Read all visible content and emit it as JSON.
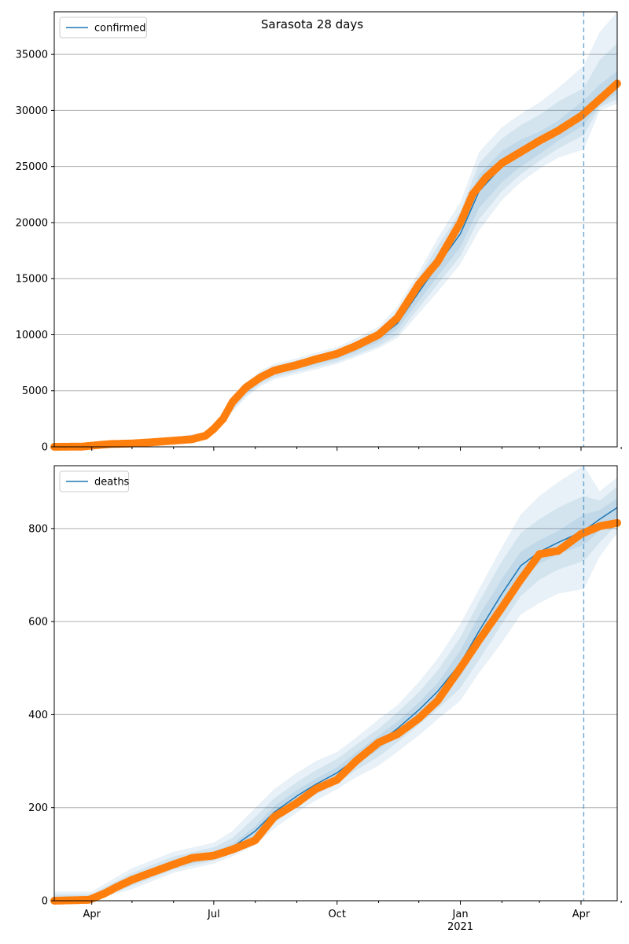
{
  "title": "Sarasota 28 days",
  "colors": {
    "model_line": "#1f77b4",
    "observed_points": "#ff7f0e",
    "band": "#1f77b4",
    "forecast_start_line": "#1f77b4",
    "grid": "#b0b0b0"
  },
  "x_axis": {
    "ticks": [
      {
        "date": "2020-04-01",
        "label": "Apr",
        "sublabel": ""
      },
      {
        "date": "2020-07-01",
        "label": "Jul",
        "sublabel": ""
      },
      {
        "date": "2020-10-01",
        "label": "Oct",
        "sublabel": ""
      },
      {
        "date": "2021-01-01",
        "label": "Jan",
        "sublabel": "2021"
      },
      {
        "date": "2021-04-01",
        "label": "Apr",
        "sublabel": ""
      }
    ],
    "minor_ticks": [
      "2020-05-01",
      "2020-06-01",
      "2020-08-01",
      "2020-09-01",
      "2020-11-01",
      "2020-12-01",
      "2021-02-01",
      "2021-03-01",
      "2021-05-01"
    ],
    "range": [
      "2020-03-04",
      "2021-04-28"
    ]
  },
  "forecast_start": "2021-04-03",
  "chart_data": [
    {
      "type": "line",
      "legend": "confirmed",
      "legend_position": "upper-left",
      "ylim": [
        0,
        38800
      ],
      "yticks": [
        0,
        5000,
        10000,
        15000,
        20000,
        25000,
        30000,
        35000
      ],
      "grid": "horizontal",
      "model": [
        [
          "2020-03-04",
          0
        ],
        [
          "2020-04-01",
          150
        ],
        [
          "2020-05-01",
          400
        ],
        [
          "2020-06-01",
          650
        ],
        [
          "2020-06-25",
          1100
        ],
        [
          "2020-07-05",
          2000
        ],
        [
          "2020-07-15",
          3600
        ],
        [
          "2020-07-25",
          5000
        ],
        [
          "2020-08-05",
          6100
        ],
        [
          "2020-08-15",
          6700
        ],
        [
          "2020-09-01",
          7200
        ],
        [
          "2020-09-15",
          7600
        ],
        [
          "2020-10-01",
          8100
        ],
        [
          "2020-10-15",
          8800
        ],
        [
          "2020-11-01",
          9700
        ],
        [
          "2020-11-15",
          11000
        ],
        [
          "2020-12-01",
          13800
        ],
        [
          "2020-12-15",
          16200
        ],
        [
          "2021-01-01",
          19000
        ],
        [
          "2021-01-15",
          22800
        ],
        [
          "2021-02-01",
          25000
        ],
        [
          "2021-02-15",
          26200
        ],
        [
          "2021-03-01",
          27100
        ],
        [
          "2021-03-15",
          28200
        ],
        [
          "2021-04-03",
          29800
        ],
        [
          "2021-04-15",
          31200
        ],
        [
          "2021-04-28",
          32500
        ]
      ],
      "bands": [
        {
          "lower": [
            0,
            40,
            200,
            450,
            900,
            1700,
            3100,
            4400,
            5400,
            6000,
            6500,
            6900,
            7400,
            8000,
            8800,
            9700,
            11900,
            13800,
            16300,
            19300,
            22000,
            23600,
            24800,
            25800,
            26500,
            30000,
            30600
          ],
          "upper": [
            150,
            300,
            600,
            850,
            1350,
            2300,
            4200,
            5700,
            6800,
            7400,
            7900,
            8400,
            8900,
            9700,
            10700,
            12500,
            15600,
            18600,
            21800,
            26300,
            28500,
            29700,
            30700,
            32000,
            34000,
            37000,
            38800
          ]
        },
        {
          "lower": [
            0,
            70,
            260,
            500,
            950,
            1800,
            3300,
            4600,
            5600,
            6200,
            6700,
            7100,
            7600,
            8200,
            9000,
            10000,
            12400,
            14500,
            17000,
            20300,
            22800,
            24300,
            25500,
            26600,
            27800,
            30300,
            31000
          ],
          "upper": [
            100,
            240,
            540,
            800,
            1250,
            2200,
            3950,
            5450,
            6600,
            7200,
            7700,
            8100,
            8600,
            9400,
            10400,
            12000,
            15100,
            17900,
            21000,
            25300,
            27500,
            28700,
            29600,
            30800,
            32000,
            34500,
            36000
          ]
        },
        {
          "lower": [
            0,
            100,
            320,
            560,
            1000,
            1870,
            3420,
            4780,
            5830,
            6450,
            6950,
            7350,
            7850,
            8500,
            9350,
            10500,
            13000,
            15200,
            17800,
            21300,
            23600,
            25000,
            26100,
            27300,
            28700,
            30500,
            31500
          ],
          "upper": [
            50,
            200,
            480,
            740,
            1200,
            2130,
            3780,
            5220,
            6370,
            6950,
            7450,
            7850,
            8350,
            9100,
            10050,
            11500,
            14600,
            17200,
            20200,
            24300,
            26400,
            27400,
            28100,
            29100,
            30900,
            32300,
            33500
          ]
        }
      ],
      "observed": [
        [
          "2020-03-04",
          0
        ],
        [
          "2020-03-25",
          20
        ],
        [
          "2020-04-05",
          150
        ],
        [
          "2020-04-15",
          250
        ],
        [
          "2020-05-01",
          300
        ],
        [
          "2020-05-15",
          400
        ],
        [
          "2020-06-01",
          550
        ],
        [
          "2020-06-15",
          680
        ],
        [
          "2020-06-25",
          1000
        ],
        [
          "2020-07-01",
          1600
        ],
        [
          "2020-07-08",
          2500
        ],
        [
          "2020-07-15",
          4000
        ],
        [
          "2020-07-25",
          5300
        ],
        [
          "2020-08-05",
          6200
        ],
        [
          "2020-08-15",
          6800
        ],
        [
          "2020-09-01",
          7300
        ],
        [
          "2020-09-15",
          7800
        ],
        [
          "2020-10-01",
          8300
        ],
        [
          "2020-10-15",
          9000
        ],
        [
          "2020-11-01",
          10000
        ],
        [
          "2020-11-15",
          11500
        ],
        [
          "2020-12-01",
          14500
        ],
        [
          "2020-12-15",
          16500
        ],
        [
          "2021-01-01",
          20000
        ],
        [
          "2021-01-10",
          22500
        ],
        [
          "2021-01-20",
          24000
        ],
        [
          "2021-02-01",
          25300
        ],
        [
          "2021-02-15",
          26300
        ],
        [
          "2021-03-01",
          27300
        ],
        [
          "2021-03-15",
          28200
        ],
        [
          "2021-04-01",
          29500
        ],
        [
          "2021-04-15",
          31000
        ],
        [
          "2021-04-28",
          32400
        ]
      ]
    },
    {
      "type": "line",
      "legend": "deaths",
      "legend_position": "upper-left",
      "ylim": [
        0,
        935
      ],
      "yticks": [
        0,
        200,
        400,
        600,
        800
      ],
      "grid": "horizontal",
      "model": [
        [
          "2020-03-04",
          0
        ],
        [
          "2020-04-01",
          5
        ],
        [
          "2020-05-01",
          45
        ],
        [
          "2020-06-01",
          80
        ],
        [
          "2020-07-01",
          98
        ],
        [
          "2020-07-15",
          115
        ],
        [
          "2020-08-01",
          150
        ],
        [
          "2020-08-15",
          190
        ],
        [
          "2020-09-01",
          225
        ],
        [
          "2020-09-15",
          250
        ],
        [
          "2020-10-01",
          275
        ],
        [
          "2020-10-15",
          305
        ],
        [
          "2020-11-01",
          340
        ],
        [
          "2020-11-15",
          370
        ],
        [
          "2020-12-01",
          410
        ],
        [
          "2020-12-15",
          450
        ],
        [
          "2021-01-01",
          510
        ],
        [
          "2021-01-15",
          580
        ],
        [
          "2021-02-01",
          660
        ],
        [
          "2021-02-15",
          720
        ],
        [
          "2021-03-01",
          750
        ],
        [
          "2021-03-15",
          770
        ],
        [
          "2021-04-03",
          795
        ],
        [
          "2021-04-15",
          820
        ],
        [
          "2021-04-28",
          845
        ]
      ],
      "bands": [
        {
          "lower": [
            0,
            0,
            25,
            60,
            80,
            95,
            120,
            155,
            190,
            215,
            240,
            265,
            290,
            320,
            355,
            390,
            430,
            490,
            555,
            615,
            640,
            660,
            670,
            740,
            790
          ],
          "upper": [
            20,
            20,
            70,
            105,
            125,
            150,
            200,
            240,
            275,
            300,
            320,
            350,
            390,
            420,
            470,
            520,
            595,
            670,
            760,
            830,
            870,
            900,
            935,
            880,
            910
          ]
        },
        {
          "lower": [
            0,
            0,
            32,
            67,
            86,
            102,
            130,
            167,
            202,
            228,
            253,
            280,
            310,
            340,
            378,
            412,
            457,
            518,
            595,
            655,
            690,
            712,
            730,
            770,
            810
          ],
          "upper": [
            14,
            14,
            60,
            95,
            115,
            135,
            180,
            220,
            255,
            280,
            305,
            335,
            370,
            405,
            448,
            495,
            566,
            643,
            730,
            790,
            820,
            845,
            870,
            860,
            890
          ]
        },
        {
          "lower": [
            0,
            1,
            38,
            72,
            91,
            108,
            140,
            177,
            212,
            238,
            263,
            292,
            325,
            355,
            394,
            432,
            482,
            547,
            628,
            690,
            725,
            745,
            765,
            795,
            825
          ],
          "upper": [
            9,
            9,
            52,
            88,
            105,
            122,
            160,
            203,
            238,
            262,
            287,
            318,
            355,
            385,
            426,
            468,
            538,
            613,
            692,
            750,
            775,
            795,
            830,
            840,
            865
          ]
        }
      ],
      "observed": [
        [
          "2020-03-04",
          0
        ],
        [
          "2020-03-30",
          2
        ],
        [
          "2020-04-10",
          15
        ],
        [
          "2020-04-20",
          30
        ],
        [
          "2020-05-01",
          45
        ],
        [
          "2020-05-15",
          60
        ],
        [
          "2020-06-01",
          78
        ],
        [
          "2020-06-15",
          92
        ],
        [
          "2020-07-01",
          97
        ],
        [
          "2020-07-15",
          110
        ],
        [
          "2020-08-01",
          130
        ],
        [
          "2020-08-15",
          180
        ],
        [
          "2020-09-01",
          210
        ],
        [
          "2020-09-15",
          240
        ],
        [
          "2020-10-01",
          260
        ],
        [
          "2020-10-15",
          300
        ],
        [
          "2020-11-01",
          340
        ],
        [
          "2020-11-15",
          358
        ],
        [
          "2020-12-01",
          392
        ],
        [
          "2020-12-15",
          430
        ],
        [
          "2021-01-01",
          500
        ],
        [
          "2021-01-15",
          560
        ],
        [
          "2021-02-01",
          630
        ],
        [
          "2021-02-15",
          690
        ],
        [
          "2021-03-01",
          745
        ],
        [
          "2021-03-15",
          752
        ],
        [
          "2021-04-01",
          788
        ],
        [
          "2021-04-15",
          805
        ],
        [
          "2021-04-28",
          812
        ]
      ]
    }
  ]
}
